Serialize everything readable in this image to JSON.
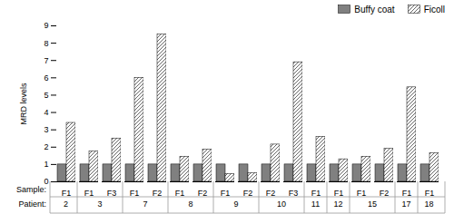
{
  "chart_data": {
    "type": "bar",
    "categories": [
      "F1",
      "F1",
      "F3",
      "F1",
      "F2",
      "F1",
      "F2",
      "F1",
      "F2",
      "F2",
      "F3",
      "F1",
      "F1",
      "F1",
      "F2",
      "F1",
      "F1"
    ],
    "category_groups": [
      "2",
      "3",
      "3",
      "7",
      "7",
      "8",
      "8",
      "9",
      "9",
      "10",
      "10",
      "11",
      "12",
      "15",
      "15",
      "17",
      "18"
    ],
    "annotations": [
      "Sample:",
      "Patient:"
    ],
    "ylabel": "MRD levels",
    "ylim": [
      0,
      9
    ],
    "yticks": [
      0,
      1,
      2,
      3,
      4,
      5,
      6,
      7,
      8,
      9
    ],
    "legend": "upper right",
    "series": [
      {
        "name": "Buffy coat",
        "color": "#808080",
        "values": [
          1.0,
          1.0,
          1.0,
          1.0,
          1.0,
          1.0,
          1.0,
          1.0,
          1.0,
          1.0,
          1.0,
          1.0,
          1.0,
          1.0,
          1.0,
          1.0,
          1.0
        ]
      },
      {
        "name": "Ficoll",
        "color": "#ffffff",
        "values": [
          3.4,
          1.75,
          2.5,
          6.0,
          8.5,
          1.45,
          1.85,
          0.45,
          0.5,
          2.15,
          6.9,
          2.6,
          1.3,
          1.45,
          1.9,
          5.45,
          1.65
        ]
      }
    ]
  }
}
